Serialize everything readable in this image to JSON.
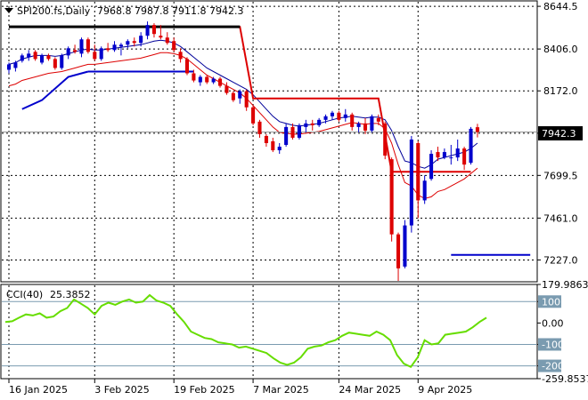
{
  "chart_data": [
    {
      "type": "candlestick",
      "title": "SPI200.fs,Daily",
      "ohlc_label": "7968.8 7987.8 7911.8 7942.3",
      "current_price": 7942.3,
      "current_price_label": "7942.3",
      "ylim": [
        7110,
        8650
      ],
      "y_ticks": [
        8644.5,
        8406.0,
        8172.0,
        7935.5,
        7699.5,
        7461.0,
        7227.0
      ],
      "y_tick_labels": [
        "8644.5",
        "8406.0",
        "8172.0",
        "",
        "7699.5",
        "7461.0",
        "7227.0"
      ],
      "x_ticks": [
        {
          "index": 0,
          "label": "16 Jan 2025"
        },
        {
          "index": 13,
          "label": "3 Feb 2025"
        },
        {
          "index": 25,
          "label": "19 Feb 2025"
        },
        {
          "index": 37,
          "label": "7 Mar 2025"
        },
        {
          "index": 50,
          "label": "24 Mar 2025"
        },
        {
          "index": 62,
          "label": "9 Apr 2025"
        }
      ],
      "candles": [
        [
          8290,
          8330,
          8270,
          8320
        ],
        [
          8300,
          8340,
          8280,
          8330
        ],
        [
          8340,
          8380,
          8330,
          8370
        ],
        [
          8360,
          8400,
          8340,
          8380
        ],
        [
          8390,
          8400,
          8340,
          8350
        ],
        [
          8330,
          8380,
          8320,
          8370
        ],
        [
          8370,
          8380,
          8340,
          8350
        ],
        [
          8350,
          8360,
          8290,
          8300
        ],
        [
          8300,
          8380,
          8290,
          8370
        ],
        [
          8370,
          8420,
          8350,
          8410
        ],
        [
          8400,
          8430,
          8380,
          8390
        ],
        [
          8380,
          8470,
          8360,
          8460
        ],
        [
          8460,
          8470,
          8380,
          8390
        ],
        [
          8390,
          8430,
          8340,
          8350
        ],
        [
          8350,
          8420,
          8340,
          8410
        ],
        [
          8410,
          8440,
          8390,
          8400
        ],
        [
          8400,
          8450,
          8390,
          8430
        ],
        [
          8420,
          8440,
          8370,
          8430
        ],
        [
          8430,
          8460,
          8410,
          8450
        ],
        [
          8450,
          8470,
          8420,
          8440
        ],
        [
          8440,
          8500,
          8420,
          8480
        ],
        [
          8480,
          8560,
          8460,
          8540
        ],
        [
          8540,
          8550,
          8470,
          8490
        ],
        [
          8480,
          8540,
          8460,
          8470
        ],
        [
          8470,
          8500,
          8430,
          8440
        ],
        [
          8450,
          8470,
          8390,
          8400
        ],
        [
          8390,
          8410,
          8330,
          8350
        ],
        [
          8350,
          8360,
          8260,
          8270
        ],
        [
          8270,
          8290,
          8220,
          8230
        ],
        [
          8220,
          8260,
          8200,
          8250
        ],
        [
          8250,
          8260,
          8210,
          8220
        ],
        [
          8220,
          8250,
          8210,
          8240
        ],
        [
          8240,
          8250,
          8190,
          8200
        ],
        [
          8200,
          8220,
          8150,
          8160
        ],
        [
          8160,
          8170,
          8110,
          8120
        ],
        [
          8130,
          8180,
          8100,
          8170
        ],
        [
          8170,
          8180,
          8060,
          8080
        ],
        [
          8080,
          8090,
          7980,
          7990
        ],
        [
          8000,
          8010,
          7910,
          7930
        ],
        [
          7920,
          7930,
          7860,
          7880
        ],
        [
          7890,
          7910,
          7830,
          7840
        ],
        [
          7840,
          7880,
          7820,
          7860
        ],
        [
          7870,
          7990,
          7860,
          7970
        ],
        [
          7970,
          7990,
          7900,
          7910
        ],
        [
          7910,
          7990,
          7900,
          7980
        ],
        [
          7970,
          8010,
          7940,
          7990
        ],
        [
          7990,
          8010,
          7950,
          7980
        ],
        [
          7980,
          8020,
          7970,
          8010
        ],
        [
          8010,
          8040,
          7990,
          8030
        ],
        [
          8030,
          8060,
          8010,
          8050
        ],
        [
          8050,
          8060,
          8000,
          8010
        ],
        [
          8020,
          8070,
          8000,
          8040
        ],
        [
          8040,
          8050,
          7950,
          7970
        ],
        [
          7970,
          8000,
          7940,
          7990
        ],
        [
          7990,
          8020,
          7930,
          7950
        ],
        [
          7950,
          8040,
          7940,
          8030
        ],
        [
          8020,
          8040,
          7980,
          8000
        ],
        [
          7990,
          8000,
          7790,
          7810
        ],
        [
          7790,
          7800,
          7330,
          7370
        ],
        [
          7370,
          7380,
          7110,
          7180
        ],
        [
          7190,
          7450,
          7180,
          7420
        ],
        [
          7420,
          7920,
          7380,
          7900
        ],
        [
          7880,
          7890,
          7460,
          7560
        ],
        [
          7560,
          7700,
          7540,
          7670
        ],
        [
          7680,
          7840,
          7670,
          7820
        ],
        [
          7830,
          7860,
          7780,
          7800
        ],
        [
          7800,
          7850,
          7790,
          7830
        ],
        [
          7800,
          7870,
          7760,
          7800
        ],
        [
          7800,
          7900,
          7780,
          7850
        ],
        [
          7850,
          7860,
          7730,
          7760
        ],
        [
          7770,
          7970,
          7760,
          7960
        ],
        [
          7968.8,
          7987.8,
          7911.8,
          7942.3
        ]
      ],
      "overlay_series": [
        {
          "color": "#000000",
          "values": [
            8530,
            8530,
            8530,
            8530,
            8530,
            8530,
            8530,
            8530,
            8530,
            8530,
            8530,
            8530,
            8530,
            8530,
            8530,
            8530,
            8530,
            8530,
            8530,
            8530,
            8530,
            8530,
            8530,
            8530,
            8530,
            8530,
            8530,
            8530,
            8530,
            8530,
            8530,
            8530,
            8530,
            8530,
            8530,
            8530
          ]
        },
        {
          "color": "#dd0000",
          "values": [
            8530,
            8530,
            8530,
            8530,
            8530,
            8530,
            8530,
            8530,
            8530,
            8530,
            8530,
            8530,
            8530,
            8530,
            8530,
            8530,
            8530,
            8530,
            8530,
            8530,
            8530,
            8530,
            8530,
            8530,
            8530,
            8530,
            8530,
            8530,
            8530,
            8530,
            8530,
            8530,
            8530,
            8530,
            8530,
            8530,
            8530,
            8530,
            8500,
            8440,
            8360,
            8290,
            8240,
            8180,
            8130,
            8130,
            8130,
            8130,
            8130,
            8130,
            8130,
            8130,
            8130,
            8130,
            8130,
            8130,
            8130,
            8130,
            8130,
            8130,
            8130,
            8130,
            8130,
            8130,
            8130,
            8130,
            8130,
            8130,
            8130,
            8130,
            7720,
            7720,
            7720,
            7720,
            7720,
            7720,
            7720,
            7720,
            7720,
            7720,
            7720,
            7720,
            7720,
            7720,
            7720,
            7720,
            7720,
            7720,
            7720,
            7720,
            7720,
            7720,
            7720,
            7720,
            7720,
            7720,
            7720,
            7720,
            7720,
            7720,
            7720,
            7720,
            7720,
            7720,
            7720,
            7720,
            7720,
            7720,
            7720,
            7720
          ]
        },
        {
          "color": "#0000cc",
          "values": [
            null,
            null,
            null,
            null,
            null,
            null,
            null,
            null,
            null,
            null,
            null,
            null,
            null,
            null,
            null,
            null,
            null,
            null,
            null,
            null,
            null,
            null,
            null,
            null,
            null,
            null,
            null,
            null,
            null,
            null,
            null,
            null,
            null,
            null,
            null,
            null,
            null,
            null,
            null,
            null,
            null,
            null,
            null,
            null,
            null,
            null,
            null,
            null,
            null,
            null,
            null,
            null,
            null,
            null,
            null,
            null,
            null,
            null,
            null,
            null,
            null,
            null,
            null,
            null,
            null,
            null,
            null,
            null,
            null,
            null,
            null,
            null,
            null,
            null
          ]
        }
      ],
      "stop_lines": [
        {
          "color": "#000000",
          "y": 8530,
          "from": 0,
          "to": 35
        },
        {
          "color": "#0000cc",
          "y": 8280,
          "from": 12,
          "to": 28
        },
        {
          "color": "#0000cc",
          "y": 7255,
          "from": 67,
          "to": 79
        }
      ],
      "sar_red": [
        {
          "from": 25,
          "to": 35,
          "y": 8530
        },
        {
          "from": 37,
          "to": 56,
          "y": 8130
        },
        {
          "from": 58,
          "to": 62,
          "y": 7720
        }
      ],
      "ma_blue": [
        8320,
        8330,
        8350,
        8360,
        8370,
        8370,
        8370,
        8365,
        8370,
        8380,
        8390,
        8400,
        8405,
        8400,
        8400,
        8405,
        8410,
        8415,
        8420,
        8425,
        8430,
        8440,
        8450,
        8455,
        8450,
        8440,
        8420,
        8390,
        8360,
        8330,
        8300,
        8280,
        8260,
        8240,
        8220,
        8200,
        8180,
        8150,
        8110,
        8070,
        8030,
        8000,
        7990,
        7980,
        7975,
        7980,
        7985,
        7990,
        8000,
        8010,
        8020,
        8025,
        8030,
        8025,
        8020,
        8025,
        8025,
        8010,
        7950,
        7860,
        7780,
        7770,
        7750,
        7740,
        7760,
        7790,
        7800,
        7810,
        7820,
        7830,
        7850,
        7880
      ],
      "ma_red": [
        8200,
        8210,
        8230,
        8240,
        8250,
        8260,
        8270,
        8275,
        8280,
        8290,
        8300,
        8310,
        8320,
        8320,
        8325,
        8330,
        8335,
        8340,
        8345,
        8350,
        8355,
        8365,
        8375,
        8385,
        8385,
        8380,
        8370,
        8350,
        8320,
        8290,
        8260,
        8240,
        8220,
        8200,
        8180,
        8160,
        8130,
        8090,
        8050,
        8010,
        7970,
        7940,
        7935,
        7930,
        7930,
        7935,
        7940,
        7945,
        7955,
        7965,
        7975,
        7985,
        7995,
        7990,
        7985,
        7990,
        7990,
        7960,
        7880,
        7760,
        7660,
        7640,
        7590,
        7570,
        7580,
        7610,
        7620,
        7640,
        7660,
        7680,
        7710,
        7740
      ],
      "sma_dots_blue_line": [],
      "ylabel": ""
    },
    {
      "type": "line",
      "title": "CCI(40)",
      "value_label": "25.3852",
      "ylim": [
        -259.8537,
        179.9863
      ],
      "y_ticks": [
        179.9863,
        100,
        0,
        -100,
        -200,
        -259.8537
      ],
      "y_tick_labels": [
        "179.9863",
        "100",
        "0.00",
        "-100",
        "-200",
        "-259.8537"
      ],
      "levels": [
        100,
        -100,
        -200
      ],
      "color": "#66dd00",
      "values": [
        5,
        8,
        25,
        40,
        35,
        45,
        25,
        30,
        55,
        70,
        110,
        90,
        70,
        40,
        80,
        95,
        85,
        100,
        110,
        95,
        100,
        130,
        105,
        95,
        80,
        40,
        5,
        -40,
        -55,
        -70,
        -75,
        -90,
        -95,
        -100,
        -115,
        -110,
        -120,
        -130,
        -140,
        -165,
        -185,
        -195,
        -185,
        -160,
        -120,
        -110,
        -105,
        -90,
        -80,
        -60,
        -45,
        -50,
        -55,
        -60,
        -40,
        -55,
        -80,
        -150,
        -190,
        -205,
        -160,
        -80,
        -100,
        -95,
        -55,
        -50,
        -45,
        -40,
        -20,
        5,
        25
      ]
    }
  ]
}
